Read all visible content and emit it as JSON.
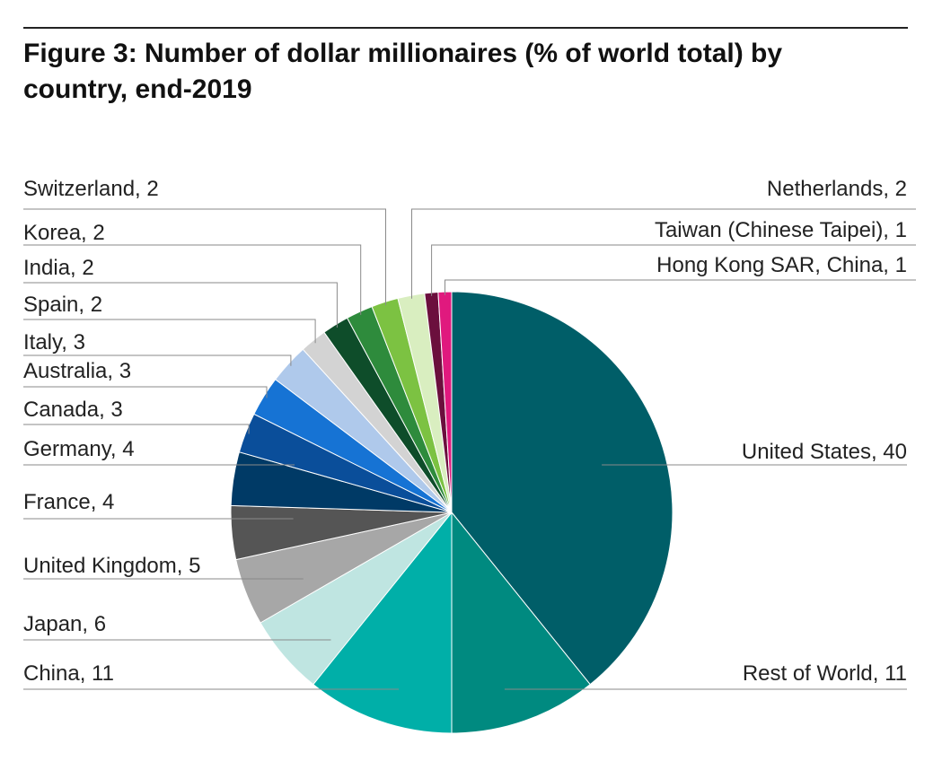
{
  "figure": {
    "title": "Figure 3: Number of dollar millionaires (% of world total) by country, end-2019"
  },
  "chart_data": {
    "type": "pie",
    "title": "Figure 3: Number of dollar millionaires (% of world total) by country, end-2019",
    "start_angle_deg": 0,
    "direction": "clockwise",
    "slices": [
      {
        "name": "United States",
        "value": 40,
        "label": "United States, 40",
        "color": "#005E68"
      },
      {
        "name": "Rest of World",
        "value": 11,
        "label": "Rest of World, 11",
        "color": "#008A80"
      },
      {
        "name": "China",
        "value": 11,
        "label": "China, 11",
        "color": "#00AFA8"
      },
      {
        "name": "Japan",
        "value": 6,
        "label": "Japan, 6",
        "color": "#BFE5E1"
      },
      {
        "name": "United Kingdom",
        "value": 5,
        "label": "United Kingdom, 5",
        "color": "#A7A7A7"
      },
      {
        "name": "France",
        "value": 4,
        "label": "France, 4",
        "color": "#555555"
      },
      {
        "name": "Germany",
        "value": 4,
        "label": "Germany, 4",
        "color": "#003A66"
      },
      {
        "name": "Canada",
        "value": 3,
        "label": "Canada, 3",
        "color": "#0A4E9A"
      },
      {
        "name": "Australia",
        "value": 3,
        "label": "Australia, 3",
        "color": "#1673D4"
      },
      {
        "name": "Italy",
        "value": 3,
        "label": "Italy, 3",
        "color": "#AFC9EB"
      },
      {
        "name": "Spain",
        "value": 2,
        "label": "Spain, 2",
        "color": "#D3D3D3"
      },
      {
        "name": "India",
        "value": 2,
        "label": "India, 2",
        "color": "#0E4D2A"
      },
      {
        "name": "Korea",
        "value": 2,
        "label": "Korea, 2",
        "color": "#2E8B3C"
      },
      {
        "name": "Switzerland",
        "value": 2,
        "label": "Switzerland, 2",
        "color": "#7CC242"
      },
      {
        "name": "Netherlands",
        "value": 2,
        "label": "Netherlands, 2",
        "color": "#D9EEC0"
      },
      {
        "name": "Taiwan (Chinese Taipei)",
        "value": 1,
        "label": "Taiwan (Chinese Taipei), 1",
        "color": "#6B0F3D"
      },
      {
        "name": "Hong Kong SAR, China",
        "value": 1,
        "label": "Hong Kong SAR, China, 1",
        "color": "#E0197E"
      }
    ]
  }
}
